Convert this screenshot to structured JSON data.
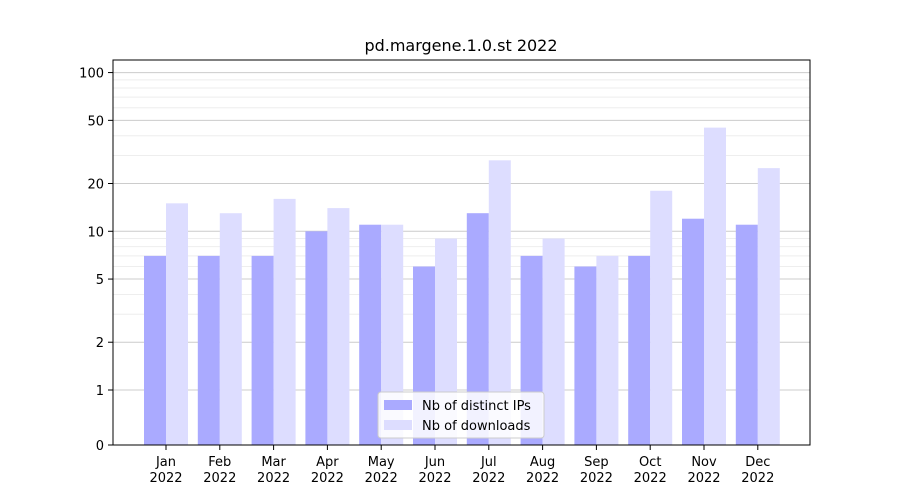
{
  "chart_data": {
    "type": "bar",
    "title": "pd.margene.1.0.st 2022",
    "xlabel": "",
    "ylabel": "",
    "y_scale": "symlog",
    "ylim": [
      0,
      120
    ],
    "yticks": [
      0,
      1,
      2,
      5,
      10,
      20,
      50,
      100
    ],
    "grid": true,
    "legend_position": "bottom-center",
    "categories": [
      "Jan\n2022",
      "Feb\n2022",
      "Mar\n2022",
      "Apr\n2022",
      "May\n2022",
      "Jun\n2022",
      "Jul\n2022",
      "Aug\n2022",
      "Sep\n2022",
      "Oct\n2022",
      "Nov\n2022",
      "Dec\n2022"
    ],
    "series": [
      {
        "name": "Nb of distinct IPs",
        "color": "#aaaaff",
        "values": [
          7,
          7,
          7,
          10,
          11,
          6,
          13,
          7,
          6,
          7,
          12,
          11
        ]
      },
      {
        "name": "Nb of downloads",
        "color": "#ddddff",
        "values": [
          15,
          13,
          16,
          14,
          11,
          9,
          28,
          9,
          7,
          18,
          45,
          25
        ]
      }
    ]
  }
}
